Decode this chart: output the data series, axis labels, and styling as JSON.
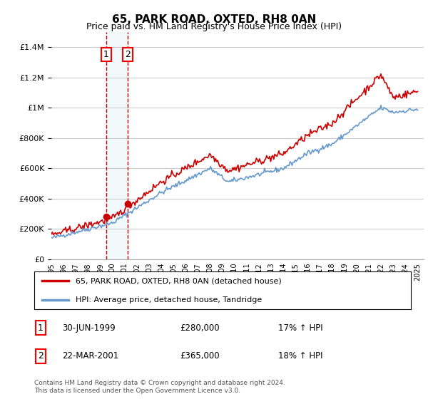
{
  "title": "65, PARK ROAD, OXTED, RH8 0AN",
  "subtitle": "Price paid vs. HM Land Registry's House Price Index (HPI)",
  "legend_line1": "65, PARK ROAD, OXTED, RH8 0AN (detached house)",
  "legend_line2": "HPI: Average price, detached house, Tandridge",
  "transaction1_date": "30-JUN-1999",
  "transaction1_price": "£280,000",
  "transaction1_hpi": "17% ↑ HPI",
  "transaction2_date": "22-MAR-2001",
  "transaction2_price": "£365,000",
  "transaction2_hpi": "18% ↑ HPI",
  "footer": "Contains HM Land Registry data © Crown copyright and database right 2024.\nThis data is licensed under the Open Government Licence v3.0.",
  "red_color": "#cc0000",
  "blue_color": "#6699cc",
  "vline_color": "#cc0000",
  "background_color": "#ffffff",
  "grid_color": "#cccccc",
  "ylim_max": 1500000,
  "transaction1_year": 1999.5,
  "transaction2_year": 2001.25,
  "transaction1_value": 280000,
  "transaction2_value": 365000
}
